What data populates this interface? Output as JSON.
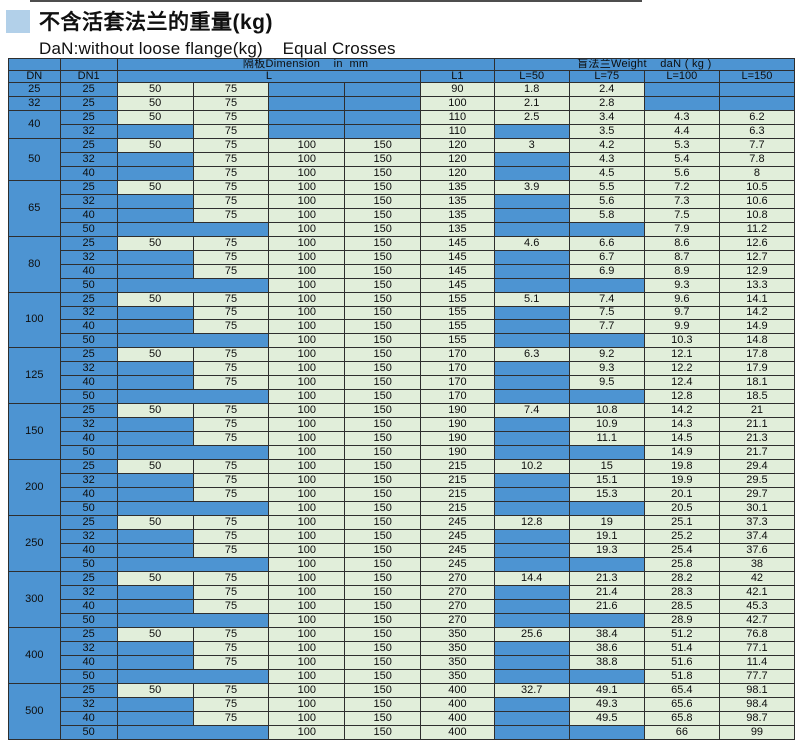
{
  "title": "不含活套法兰的重量(kg)",
  "subtitle": "DaN:without loose flange(kg)    Equal Crosses",
  "colors": {
    "cell_blue": "#4d94d2",
    "cell_green": "#e1eeda",
    "bullet_blue": "#b2d0e9",
    "grid_line": "#2e2e2e"
  },
  "table": {
    "header": {
      "dim_group": "隔板Dimension    in  mm",
      "weight_group": "盲法兰Weight    daN ( kg )",
      "dn": "DN",
      "dn1": "DN1",
      "l": "L",
      "l1": "L1",
      "weight_cols": [
        "L=50",
        "L=75",
        "L=100",
        "L=150"
      ]
    },
    "groups": [
      {
        "dn": "25",
        "rows": [
          {
            "dn1": "25",
            "d": [
              "50",
              "75",
              "",
              ""
            ],
            "l1": "90",
            "w": [
              "1.8",
              "2.4",
              "",
              ""
            ]
          }
        ]
      },
      {
        "dn": "32",
        "rows": [
          {
            "dn1": "25",
            "d": [
              "50",
              "75",
              "",
              ""
            ],
            "l1": "100",
            "w": [
              "2.1",
              "2.8",
              "",
              ""
            ]
          }
        ]
      },
      {
        "dn": "40",
        "rows": [
          {
            "dn1": "25",
            "d": [
              "50",
              "75",
              "",
              ""
            ],
            "l1": "110",
            "w": [
              "2.5",
              "3.4",
              "4.3",
              "6.2"
            ]
          },
          {
            "dn1": "32",
            "d": [
              "",
              "75",
              "",
              ""
            ],
            "l1": "110",
            "w": [
              "",
              "3.5",
              "4.4",
              "6.3"
            ]
          }
        ]
      },
      {
        "dn": "50",
        "rows": [
          {
            "dn1": "25",
            "d": [
              "50",
              "75",
              "100",
              "150"
            ],
            "l1": "120",
            "w": [
              "3",
              "4.2",
              "5.3",
              "7.7"
            ]
          },
          {
            "dn1": "32",
            "d": [
              "",
              "75",
              "100",
              "150"
            ],
            "l1": "120",
            "w": [
              "",
              "4.3",
              "5.4",
              "7.8"
            ]
          },
          {
            "dn1": "40",
            "d": [
              "",
              "75",
              "100",
              "150"
            ],
            "l1": "120",
            "w": [
              "",
              "4.5",
              "5.6",
              "8"
            ]
          }
        ]
      },
      {
        "dn": "65",
        "rows": [
          {
            "dn1": "25",
            "d": [
              "50",
              "75",
              "100",
              "150"
            ],
            "l1": "135",
            "w": [
              "3.9",
              "5.5",
              "7.2",
              "10.5"
            ]
          },
          {
            "dn1": "32",
            "d": [
              "",
              "75",
              "100",
              "150"
            ],
            "l1": "135",
            "w": [
              "",
              "5.6",
              "7.3",
              "10.6"
            ]
          },
          {
            "dn1": "40",
            "d": [
              "",
              "75",
              "100",
              "150"
            ],
            "l1": "135",
            "w": [
              "",
              "5.8",
              "7.5",
              "10.8"
            ]
          },
          {
            "dn1": "50",
            "d": [
              "",
              "",
              "100",
              "150"
            ],
            "l1": "135",
            "w": [
              "",
              "",
              "7.9",
              "11.2"
            ]
          }
        ]
      },
      {
        "dn": "80",
        "rows": [
          {
            "dn1": "25",
            "d": [
              "50",
              "75",
              "100",
              "150"
            ],
            "l1": "145",
            "w": [
              "4.6",
              "6.6",
              "8.6",
              "12.6"
            ]
          },
          {
            "dn1": "32",
            "d": [
              "",
              "75",
              "100",
              "150"
            ],
            "l1": "145",
            "w": [
              "",
              "6.7",
              "8.7",
              "12.7"
            ]
          },
          {
            "dn1": "40",
            "d": [
              "",
              "75",
              "100",
              "150"
            ],
            "l1": "145",
            "w": [
              "",
              "6.9",
              "8.9",
              "12.9"
            ]
          },
          {
            "dn1": "50",
            "d": [
              "",
              "",
              "100",
              "150"
            ],
            "l1": "145",
            "w": [
              "",
              "",
              "9.3",
              "13.3"
            ]
          }
        ]
      },
      {
        "dn": "100",
        "rows": [
          {
            "dn1": "25",
            "d": [
              "50",
              "75",
              "100",
              "150"
            ],
            "l1": "155",
            "w": [
              "5.1",
              "7.4",
              "9.6",
              "14.1"
            ]
          },
          {
            "dn1": "32",
            "d": [
              "",
              "75",
              "100",
              "150"
            ],
            "l1": "155",
            "w": [
              "",
              "7.5",
              "9.7",
              "14.2"
            ]
          },
          {
            "dn1": "40",
            "d": [
              "",
              "75",
              "100",
              "150"
            ],
            "l1": "155",
            "w": [
              "",
              "7.7",
              "9.9",
              "14.9"
            ]
          },
          {
            "dn1": "50",
            "d": [
              "",
              "",
              "100",
              "150"
            ],
            "l1": "155",
            "w": [
              "",
              "",
              "10.3",
              "14.8"
            ]
          }
        ]
      },
      {
        "dn": "125",
        "rows": [
          {
            "dn1": "25",
            "d": [
              "50",
              "75",
              "100",
              "150"
            ],
            "l1": "170",
            "w": [
              "6.3",
              "9.2",
              "12.1",
              "17.8"
            ]
          },
          {
            "dn1": "32",
            "d": [
              "",
              "75",
              "100",
              "150"
            ],
            "l1": "170",
            "w": [
              "",
              "9.3",
              "12.2",
              "17.9"
            ]
          },
          {
            "dn1": "40",
            "d": [
              "",
              "75",
              "100",
              "150"
            ],
            "l1": "170",
            "w": [
              "",
              "9.5",
              "12.4",
              "18.1"
            ]
          },
          {
            "dn1": "50",
            "d": [
              "",
              "",
              "100",
              "150"
            ],
            "l1": "170",
            "w": [
              "",
              "",
              "12.8",
              "18.5"
            ]
          }
        ]
      },
      {
        "dn": "150",
        "rows": [
          {
            "dn1": "25",
            "d": [
              "50",
              "75",
              "100",
              "150"
            ],
            "l1": "190",
            "w": [
              "7.4",
              "10.8",
              "14.2",
              "21"
            ]
          },
          {
            "dn1": "32",
            "d": [
              "",
              "75",
              "100",
              "150"
            ],
            "l1": "190",
            "w": [
              "",
              "10.9",
              "14.3",
              "21.1"
            ]
          },
          {
            "dn1": "40",
            "d": [
              "",
              "75",
              "100",
              "150"
            ],
            "l1": "190",
            "w": [
              "",
              "11.1",
              "14.5",
              "21.3"
            ]
          },
          {
            "dn1": "50",
            "d": [
              "",
              "",
              "100",
              "150"
            ],
            "l1": "190",
            "w": [
              "",
              "",
              "14.9",
              "21.7"
            ]
          }
        ]
      },
      {
        "dn": "200",
        "rows": [
          {
            "dn1": "25",
            "d": [
              "50",
              "75",
              "100",
              "150"
            ],
            "l1": "215",
            "w": [
              "10.2",
              "15",
              "19.8",
              "29.4"
            ]
          },
          {
            "dn1": "32",
            "d": [
              "",
              "75",
              "100",
              "150"
            ],
            "l1": "215",
            "w": [
              "",
              "15.1",
              "19.9",
              "29.5"
            ]
          },
          {
            "dn1": "40",
            "d": [
              "",
              "75",
              "100",
              "150"
            ],
            "l1": "215",
            "w": [
              "",
              "15.3",
              "20.1",
              "29.7"
            ]
          },
          {
            "dn1": "50",
            "d": [
              "",
              "",
              "100",
              "150"
            ],
            "l1": "215",
            "w": [
              "",
              "",
              "20.5",
              "30.1"
            ]
          }
        ]
      },
      {
        "dn": "250",
        "rows": [
          {
            "dn1": "25",
            "d": [
              "50",
              "75",
              "100",
              "150"
            ],
            "l1": "245",
            "w": [
              "12.8",
              "19",
              "25.1",
              "37.3"
            ]
          },
          {
            "dn1": "32",
            "d": [
              "",
              "75",
              "100",
              "150"
            ],
            "l1": "245",
            "w": [
              "",
              "19.1",
              "25.2",
              "37.4"
            ]
          },
          {
            "dn1": "40",
            "d": [
              "",
              "75",
              "100",
              "150"
            ],
            "l1": "245",
            "w": [
              "",
              "19.3",
              "25.4",
              "37.6"
            ]
          },
          {
            "dn1": "50",
            "d": [
              "",
              "",
              "100",
              "150"
            ],
            "l1": "245",
            "w": [
              "",
              "",
              "25.8",
              "38"
            ]
          }
        ]
      },
      {
        "dn": "300",
        "rows": [
          {
            "dn1": "25",
            "d": [
              "50",
              "75",
              "100",
              "150"
            ],
            "l1": "270",
            "w": [
              "14.4",
              "21.3",
              "28.2",
              "42"
            ]
          },
          {
            "dn1": "32",
            "d": [
              "",
              "75",
              "100",
              "150"
            ],
            "l1": "270",
            "w": [
              "",
              "21.4",
              "28.3",
              "42.1"
            ]
          },
          {
            "dn1": "40",
            "d": [
              "",
              "75",
              "100",
              "150"
            ],
            "l1": "270",
            "w": [
              "",
              "21.6",
              "28.5",
              "45.3"
            ]
          },
          {
            "dn1": "50",
            "d": [
              "",
              "",
              "100",
              "150"
            ],
            "l1": "270",
            "w": [
              "",
              "",
              "28.9",
              "42.7"
            ]
          }
        ]
      },
      {
        "dn": "400",
        "rows": [
          {
            "dn1": "25",
            "d": [
              "50",
              "75",
              "100",
              "150"
            ],
            "l1": "350",
            "w": [
              "25.6",
              "38.4",
              "51.2",
              "76.8"
            ]
          },
          {
            "dn1": "32",
            "d": [
              "",
              "75",
              "100",
              "150"
            ],
            "l1": "350",
            "w": [
              "",
              "38.6",
              "51.4",
              "77.1"
            ]
          },
          {
            "dn1": "40",
            "d": [
              "",
              "75",
              "100",
              "150"
            ],
            "l1": "350",
            "w": [
              "",
              "38.8",
              "51.6",
              "11.4"
            ]
          },
          {
            "dn1": "50",
            "d": [
              "",
              "",
              "100",
              "150"
            ],
            "l1": "350",
            "w": [
              "",
              "",
              "51.8",
              "77.7"
            ]
          }
        ]
      },
      {
        "dn": "500",
        "rows": [
          {
            "dn1": "25",
            "d": [
              "50",
              "75",
              "100",
              "150"
            ],
            "l1": "400",
            "w": [
              "32.7",
              "49.1",
              "65.4",
              "98.1"
            ]
          },
          {
            "dn1": "32",
            "d": [
              "",
              "75",
              "100",
              "150"
            ],
            "l1": "400",
            "w": [
              "",
              "49.3",
              "65.6",
              "98.4"
            ]
          },
          {
            "dn1": "40",
            "d": [
              "",
              "75",
              "100",
              "150"
            ],
            "l1": "400",
            "w": [
              "",
              "49.5",
              "65.8",
              "98.7"
            ]
          },
          {
            "dn1": "50",
            "d": [
              "",
              "",
              "100",
              "150"
            ],
            "l1": "400",
            "w": [
              "",
              "",
              "66",
              "99"
            ]
          }
        ]
      }
    ]
  }
}
